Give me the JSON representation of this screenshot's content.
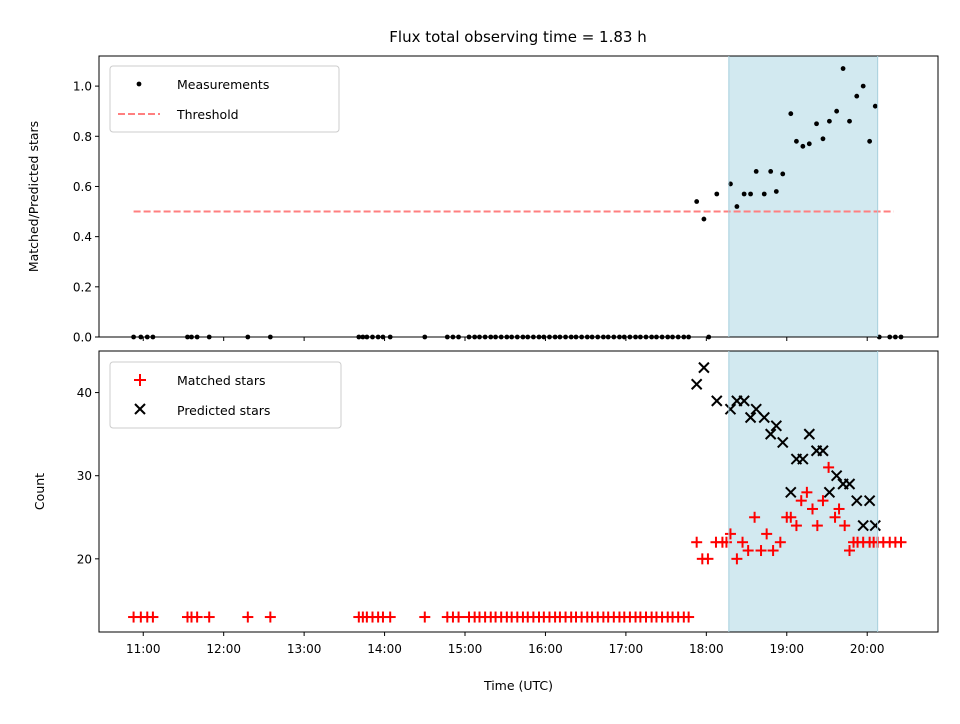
{
  "chart_data": [
    {
      "type": "scatter",
      "title": "Flux total observing time = 1.83 h",
      "xlabel": "",
      "ylabel": "Matched/Predicted stars",
      "ylim": [
        0,
        1.12
      ],
      "yticks": [
        "0.0",
        "0.2",
        "0.4",
        "0.6",
        "0.8",
        "1.0"
      ],
      "yticks_values": [
        0,
        0.2,
        0.4,
        0.6,
        0.8,
        1.0
      ],
      "xlim_hours": [
        10.45,
        20.88
      ],
      "shaded_region_hours": [
        18.28,
        20.13
      ],
      "shaded_color": "#d2e9f0",
      "legend_position": "top-left",
      "series": [
        {
          "name": "Measurements",
          "marker": "dot",
          "color": "#000000",
          "x": [
            10.88,
            10.97,
            11.05,
            11.12,
            11.55,
            11.6,
            11.67,
            11.82,
            12.3,
            12.58,
            13.68,
            13.73,
            13.78,
            13.85,
            13.92,
            13.98,
            14.07,
            14.5,
            14.78,
            14.85,
            14.92,
            15.05,
            15.12,
            15.18,
            15.25,
            15.32,
            15.38,
            15.45,
            15.52,
            15.58,
            15.65,
            15.72,
            15.78,
            15.85,
            15.92,
            15.98,
            16.05,
            16.12,
            16.18,
            16.25,
            16.32,
            16.38,
            16.45,
            16.52,
            16.58,
            16.65,
            16.72,
            16.78,
            16.85,
            16.92,
            16.98,
            17.05,
            17.12,
            17.18,
            17.25,
            17.32,
            17.38,
            17.45,
            17.52,
            17.58,
            17.65,
            17.72,
            17.78,
            17.88,
            17.97,
            18.03,
            18.13,
            18.3,
            18.38,
            18.47,
            18.55,
            18.62,
            18.72,
            18.8,
            18.87,
            18.95,
            19.05,
            19.12,
            19.2,
            19.28,
            19.37,
            19.45,
            19.53,
            19.62,
            19.7,
            19.78,
            19.87,
            19.95,
            20.03,
            20.1,
            20.15,
            20.28,
            20.35,
            20.42
          ],
          "y": [
            0,
            0,
            0,
            0,
            0,
            0,
            0,
            0,
            0,
            0,
            0,
            0,
            0,
            0,
            0,
            0,
            0,
            0,
            0,
            0,
            0,
            0,
            0,
            0,
            0,
            0,
            0,
            0,
            0,
            0,
            0,
            0,
            0,
            0,
            0,
            0,
            0,
            0,
            0,
            0,
            0,
            0,
            0,
            0,
            0,
            0,
            0,
            0,
            0,
            0,
            0,
            0,
            0,
            0,
            0,
            0,
            0,
            0,
            0,
            0,
            0,
            0,
            0,
            0.54,
            0.47,
            0,
            0.57,
            0.61,
            0.52,
            0.57,
            0.57,
            0.66,
            0.57,
            0.66,
            0.58,
            0.65,
            0.89,
            0.78,
            0.76,
            0.77,
            0.85,
            0.79,
            0.86,
            0.9,
            1.07,
            0.86,
            0.96,
            1.0,
            0.78,
            0.92,
            0,
            0,
            0,
            0
          ]
        },
        {
          "name": "Threshold",
          "marker": "dashed-line",
          "color": "#ff7f7f",
          "x": [
            10.88,
            20.33
          ],
          "y": [
            0.5,
            0.5
          ]
        }
      ]
    },
    {
      "type": "scatter",
      "title": "",
      "xlabel": "Time (UTC)",
      "ylabel": "Count",
      "ylim": [
        11.2,
        45.0
      ],
      "yticks": [
        "20",
        "30",
        "40"
      ],
      "yticks_values": [
        20,
        30,
        40
      ],
      "xlim_hours": [
        10.45,
        20.88
      ],
      "xticks": [
        "11:00",
        "12:00",
        "13:00",
        "14:00",
        "15:00",
        "16:00",
        "17:00",
        "18:00",
        "19:00",
        "20:00"
      ],
      "xticks_values": [
        11,
        12,
        13,
        14,
        15,
        16,
        17,
        18,
        19,
        20
      ],
      "shaded_region_hours": [
        18.28,
        20.13
      ],
      "shaded_color": "#d2e9f0",
      "legend_position": "top-left",
      "series": [
        {
          "name": "Matched stars",
          "marker": "plus",
          "color": "#ff0000",
          "x": [
            10.88,
            10.97,
            11.05,
            11.12,
            11.55,
            11.6,
            11.67,
            11.82,
            12.3,
            12.58,
            13.68,
            13.73,
            13.78,
            13.85,
            13.92,
            13.98,
            14.07,
            14.5,
            14.78,
            14.85,
            14.92,
            15.05,
            15.12,
            15.18,
            15.25,
            15.32,
            15.38,
            15.45,
            15.52,
            15.58,
            15.65,
            15.72,
            15.78,
            15.85,
            15.92,
            15.98,
            16.05,
            16.12,
            16.18,
            16.25,
            16.32,
            16.38,
            16.45,
            16.52,
            16.58,
            16.65,
            16.72,
            16.78,
            16.85,
            16.92,
            16.98,
            17.05,
            17.12,
            17.18,
            17.25,
            17.32,
            17.38,
            17.45,
            17.52,
            17.58,
            17.65,
            17.72,
            17.78,
            17.88,
            17.95,
            18.02,
            18.12,
            18.2,
            18.25,
            18.3,
            18.38,
            18.45,
            18.52,
            18.6,
            18.68,
            18.75,
            18.83,
            18.92,
            19.0,
            19.05,
            19.12,
            19.18,
            19.25,
            19.32,
            19.38,
            19.45,
            19.52,
            19.6,
            19.65,
            19.72,
            19.78,
            19.83,
            19.88,
            19.95,
            20.03,
            20.08,
            20.13,
            20.2,
            20.28,
            20.35,
            20.42
          ],
          "y": [
            13,
            13,
            13,
            13,
            13,
            13,
            13,
            13,
            13,
            13,
            13,
            13,
            13,
            13,
            13,
            13,
            13,
            13,
            13,
            13,
            13,
            13,
            13,
            13,
            13,
            13,
            13,
            13,
            13,
            13,
            13,
            13,
            13,
            13,
            13,
            13,
            13,
            13,
            13,
            13,
            13,
            13,
            13,
            13,
            13,
            13,
            13,
            13,
            13,
            13,
            13,
            13,
            13,
            13,
            13,
            13,
            13,
            13,
            13,
            13,
            13,
            13,
            13,
            22,
            20,
            20,
            22,
            22,
            22,
            23,
            20,
            22,
            21,
            25,
            21,
            23,
            21,
            22,
            25,
            25,
            24,
            27,
            28,
            26,
            24,
            27,
            31,
            25,
            26,
            24,
            21,
            22,
            22,
            22,
            22,
            22,
            22,
            22,
            22,
            22,
            22
          ]
        },
        {
          "name": "Predicted stars",
          "marker": "x",
          "color": "#000000",
          "x": [
            17.88,
            17.97,
            18.13,
            18.3,
            18.38,
            18.47,
            18.55,
            18.62,
            18.72,
            18.8,
            18.87,
            18.95,
            19.05,
            19.12,
            19.2,
            19.28,
            19.37,
            19.45,
            19.53,
            19.62,
            19.7,
            19.78,
            19.87,
            19.95,
            20.03,
            20.1
          ],
          "y": [
            41,
            43,
            39,
            38,
            39,
            39,
            37,
            38,
            37,
            35,
            36,
            34,
            28,
            32,
            32,
            35,
            33,
            33,
            28,
            30,
            29,
            29,
            27,
            24,
            27,
            24
          ]
        }
      ]
    }
  ]
}
